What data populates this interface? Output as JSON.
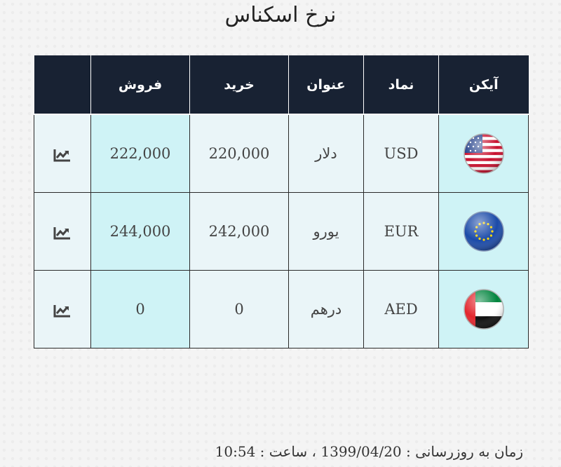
{
  "title": "نرخ اسکناس",
  "table": {
    "headers": {
      "icon": "آیکن",
      "symbol": "نماد",
      "name": "عنوان",
      "buy": "خرید",
      "sell": "فروش",
      "action": ""
    },
    "rows": [
      {
        "flag_icon": "usa-flag-icon",
        "symbol": "USD",
        "name": "دلار",
        "buy": "220,000",
        "sell": "222,000",
        "chart_icon": "chart-line-icon"
      },
      {
        "flag_icon": "eu-flag-icon",
        "symbol": "EUR",
        "name": "یورو",
        "buy": "242,000",
        "sell": "244,000",
        "chart_icon": "chart-line-icon"
      },
      {
        "flag_icon": "uae-flag-icon",
        "symbol": "AED",
        "name": "درهم",
        "buy": "0",
        "sell": "0",
        "chart_icon": "chart-line-icon"
      }
    ]
  },
  "footer": {
    "label": "زمان به روزرسانی :",
    "date": "1399/04/20",
    "separator": "،",
    "time_label": "ساعت :",
    "time": "10:54"
  },
  "colors": {
    "header_bg": "#182233",
    "cell_light": "#eaf5f8",
    "cell_cyan": "#cff3f6"
  }
}
